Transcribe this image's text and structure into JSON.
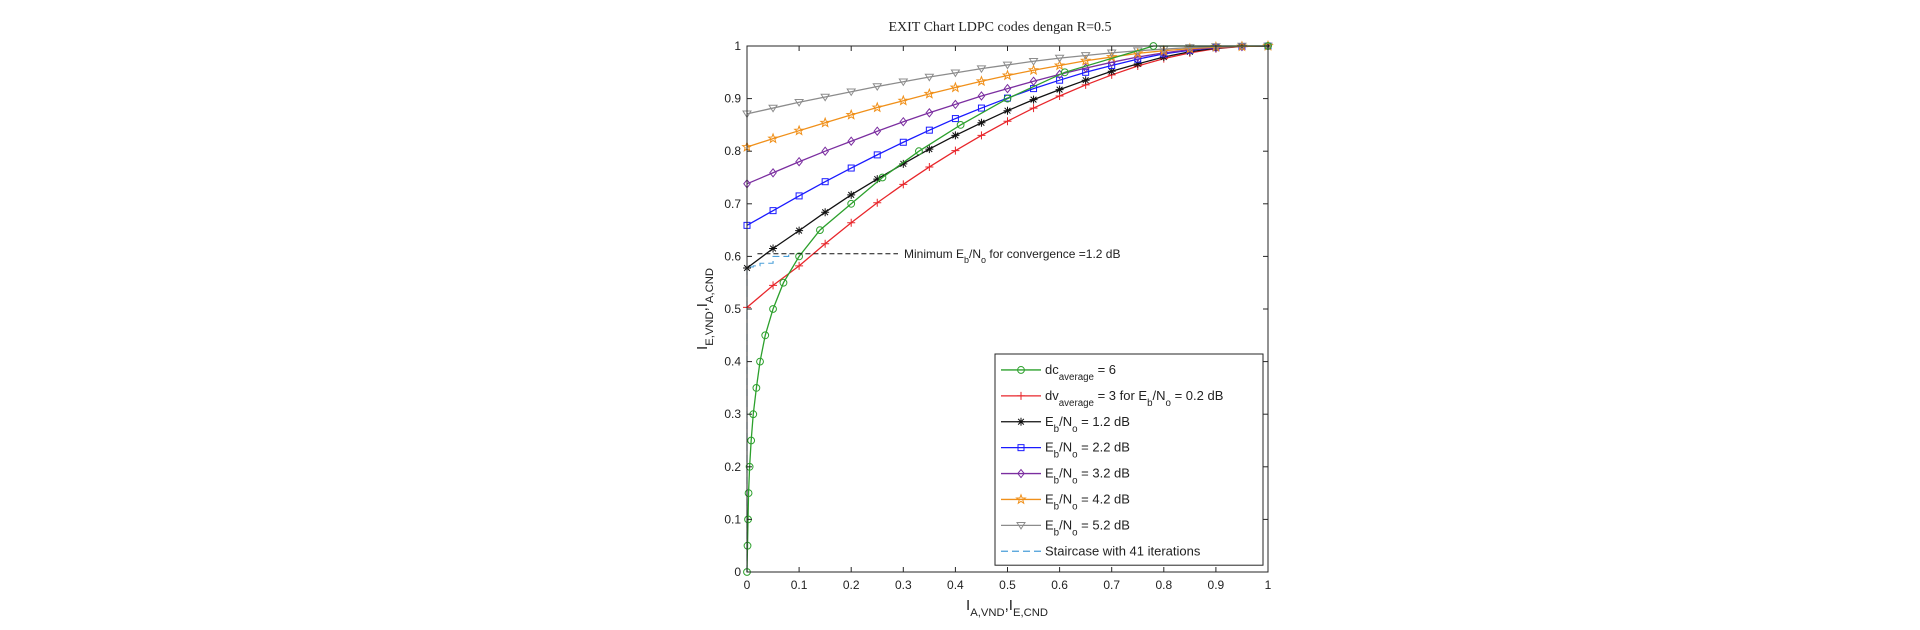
{
  "chart_data": {
    "type": "line",
    "title": "EXIT Chart LDPC codes dengan R=0.5",
    "xlabel": {
      "parts": [
        {
          "t": "I",
          "s": "normal"
        },
        {
          "t": "A,VND",
          "s": "sub"
        },
        {
          "t": ",I",
          "s": "normal"
        },
        {
          "t": "E,CND",
          "s": "sub"
        }
      ]
    },
    "ylabel": {
      "parts": [
        {
          "t": "I",
          "s": "normal"
        },
        {
          "t": "E,VND",
          "s": "sub"
        },
        {
          "t": ",I",
          "s": "normal"
        },
        {
          "t": "A,CND",
          "s": "sub"
        }
      ]
    },
    "xlim": [
      0,
      1
    ],
    "ylim": [
      0,
      1
    ],
    "xticks": [
      "0",
      "0.1",
      "0.2",
      "0.3",
      "0.4",
      "0.5",
      "0.6",
      "0.7",
      "0.8",
      "0.9",
      "1"
    ],
    "yticks": [
      "0",
      "0.1",
      "0.2",
      "0.3",
      "0.4",
      "0.5",
      "0.6",
      "0.7",
      "0.8",
      "0.9",
      "1"
    ],
    "grid": false,
    "legend_position": "bottom-right",
    "annotation": {
      "parts": [
        {
          "t": "Minimum E",
          "s": "normal"
        },
        {
          "t": "b",
          "s": "sub"
        },
        {
          "t": "/N",
          "s": "normal"
        },
        {
          "t": "o",
          "s": "sub"
        },
        {
          "t": " for convergence =1.2 dB",
          "s": "normal"
        }
      ],
      "x": 0.02,
      "y": 0.605
    },
    "series": [
      {
        "legend": [
          {
            "t": "dc",
            "s": "normal"
          },
          {
            "t": "average",
            "s": "sub"
          },
          {
            "t": " = 6",
            "s": "normal"
          }
        ],
        "color": "#2ca02c",
        "marker": "circle",
        "x": [
          0,
          0.001,
          0.002,
          0.003,
          0.005,
          0.008,
          0.012,
          0.018,
          0.025,
          0.035,
          0.05,
          0.07,
          0.1,
          0.14,
          0.2,
          0.26,
          0.33,
          0.41,
          0.5,
          0.61,
          0.78,
          1.0
        ],
        "y": [
          0,
          0.05,
          0.1,
          0.15,
          0.2,
          0.25,
          0.3,
          0.35,
          0.4,
          0.45,
          0.5,
          0.55,
          0.6,
          0.65,
          0.7,
          0.75,
          0.8,
          0.85,
          0.9,
          0.95,
          1.0,
          1.0
        ]
      },
      {
        "legend": [
          {
            "t": "dv",
            "s": "normal"
          },
          {
            "t": "average",
            "s": "sub"
          },
          {
            "t": " = 3 for E",
            "s": "normal"
          },
          {
            "t": "b",
            "s": "sub"
          },
          {
            "t": "/N",
            "s": "normal"
          },
          {
            "t": "o",
            "s": "sub"
          },
          {
            "t": " = 0.2 dB",
            "s": "normal"
          }
        ],
        "color": "#e8262b",
        "marker": "plus",
        "x": [
          0,
          0.05,
          0.1,
          0.15,
          0.2,
          0.25,
          0.3,
          0.35,
          0.4,
          0.45,
          0.5,
          0.55,
          0.6,
          0.65,
          0.7,
          0.75,
          0.8,
          0.85,
          0.9,
          0.95,
          1.0
        ],
        "y": [
          0.503,
          0.545,
          0.582,
          0.624,
          0.664,
          0.702,
          0.737,
          0.77,
          0.801,
          0.83,
          0.857,
          0.882,
          0.905,
          0.926,
          0.945,
          0.962,
          0.976,
          0.987,
          0.995,
          0.999,
          1.0
        ]
      },
      {
        "legend": [
          {
            "t": "E",
            "s": "normal"
          },
          {
            "t": "b",
            "s": "sub"
          },
          {
            "t": "/N",
            "s": "normal"
          },
          {
            "t": "o",
            "s": "sub"
          },
          {
            "t": " = 1.2 dB",
            "s": "normal"
          }
        ],
        "color": "#111111",
        "marker": "asterisk",
        "x": [
          0,
          0.05,
          0.1,
          0.15,
          0.2,
          0.25,
          0.3,
          0.35,
          0.4,
          0.45,
          0.5,
          0.55,
          0.6,
          0.65,
          0.7,
          0.75,
          0.8,
          0.85,
          0.9,
          0.95,
          1.0
        ],
        "y": [
          0.578,
          0.615,
          0.649,
          0.684,
          0.717,
          0.747,
          0.776,
          0.804,
          0.83,
          0.854,
          0.877,
          0.898,
          0.917,
          0.935,
          0.952,
          0.966,
          0.979,
          0.989,
          0.996,
          0.999,
          1.0
        ]
      },
      {
        "legend": [
          {
            "t": "E",
            "s": "normal"
          },
          {
            "t": "b",
            "s": "sub"
          },
          {
            "t": "/N",
            "s": "normal"
          },
          {
            "t": "o",
            "s": "sub"
          },
          {
            "t": " = 2.2 dB",
            "s": "normal"
          }
        ],
        "color": "#1a1aff",
        "marker": "square",
        "x": [
          0,
          0.05,
          0.1,
          0.15,
          0.2,
          0.25,
          0.3,
          0.35,
          0.4,
          0.45,
          0.5,
          0.55,
          0.6,
          0.65,
          0.7,
          0.75,
          0.8,
          0.85,
          0.9,
          0.95,
          1.0
        ],
        "y": [
          0.659,
          0.687,
          0.715,
          0.742,
          0.768,
          0.793,
          0.817,
          0.84,
          0.862,
          0.882,
          0.901,
          0.919,
          0.935,
          0.95,
          0.963,
          0.975,
          0.985,
          0.992,
          0.997,
          0.999,
          1.0
        ]
      },
      {
        "legend": [
          {
            "t": "E",
            "s": "normal"
          },
          {
            "t": "b",
            "s": "sub"
          },
          {
            "t": "/N",
            "s": "normal"
          },
          {
            "t": "o",
            "s": "sub"
          },
          {
            "t": " = 3.2 dB",
            "s": "normal"
          }
        ],
        "color": "#7b2ea0",
        "marker": "diamond",
        "x": [
          0,
          0.05,
          0.1,
          0.15,
          0.2,
          0.25,
          0.3,
          0.35,
          0.4,
          0.45,
          0.5,
          0.55,
          0.6,
          0.65,
          0.7,
          0.75,
          0.8,
          0.85,
          0.9,
          0.95,
          1.0
        ],
        "y": [
          0.738,
          0.759,
          0.78,
          0.8,
          0.819,
          0.838,
          0.856,
          0.873,
          0.889,
          0.905,
          0.919,
          0.933,
          0.946,
          0.958,
          0.969,
          0.979,
          0.987,
          0.993,
          0.997,
          0.999,
          1.0
        ]
      },
      {
        "legend": [
          {
            "t": "E",
            "s": "normal"
          },
          {
            "t": "b",
            "s": "sub"
          },
          {
            "t": "/N",
            "s": "normal"
          },
          {
            "t": "o",
            "s": "sub"
          },
          {
            "t": " = 4.2 dB",
            "s": "normal"
          }
        ],
        "color": "#f0901a",
        "marker": "star",
        "x": [
          0,
          0.05,
          0.1,
          0.15,
          0.2,
          0.25,
          0.3,
          0.35,
          0.4,
          0.45,
          0.5,
          0.55,
          0.6,
          0.65,
          0.7,
          0.75,
          0.8,
          0.85,
          0.9,
          0.95,
          1.0
        ],
        "y": [
          0.808,
          0.824,
          0.839,
          0.854,
          0.869,
          0.883,
          0.896,
          0.909,
          0.921,
          0.933,
          0.944,
          0.954,
          0.963,
          0.972,
          0.979,
          0.986,
          0.991,
          0.995,
          0.998,
          0.999,
          1.0
        ]
      },
      {
        "legend": [
          {
            "t": "E",
            "s": "normal"
          },
          {
            "t": "b",
            "s": "sub"
          },
          {
            "t": "/N",
            "s": "normal"
          },
          {
            "t": "o",
            "s": "sub"
          },
          {
            "t": " = 5.2 dB",
            "s": "normal"
          }
        ],
        "color": "#8c8c8c",
        "marker": "triangle-down",
        "x": [
          0,
          0.05,
          0.1,
          0.15,
          0.2,
          0.25,
          0.3,
          0.35,
          0.4,
          0.45,
          0.5,
          0.55,
          0.6,
          0.65,
          0.7,
          0.75,
          0.8,
          0.85,
          0.9,
          0.95,
          1.0
        ],
        "y": [
          0.871,
          0.882,
          0.893,
          0.903,
          0.913,
          0.923,
          0.932,
          0.941,
          0.949,
          0.957,
          0.964,
          0.971,
          0.977,
          0.982,
          0.987,
          0.991,
          0.994,
          0.997,
          0.999,
          1.0,
          1.0
        ]
      },
      {
        "legend": [
          {
            "t": "Staircase with 41 iterations",
            "s": "normal"
          }
        ],
        "color": "#4a9fd9",
        "marker": "none",
        "dashed": true,
        "x": [
          0,
          0,
          0.002,
          0.002,
          0.005,
          0.005,
          0.012,
          0.012,
          0.025,
          0.025,
          0.05,
          0.05,
          0.08,
          0.08
        ],
        "y": [
          0,
          0.578,
          0.578,
          0.579,
          0.579,
          0.58,
          0.58,
          0.582,
          0.582,
          0.587,
          0.587,
          0.6,
          0.6,
          0.61
        ]
      }
    ]
  }
}
